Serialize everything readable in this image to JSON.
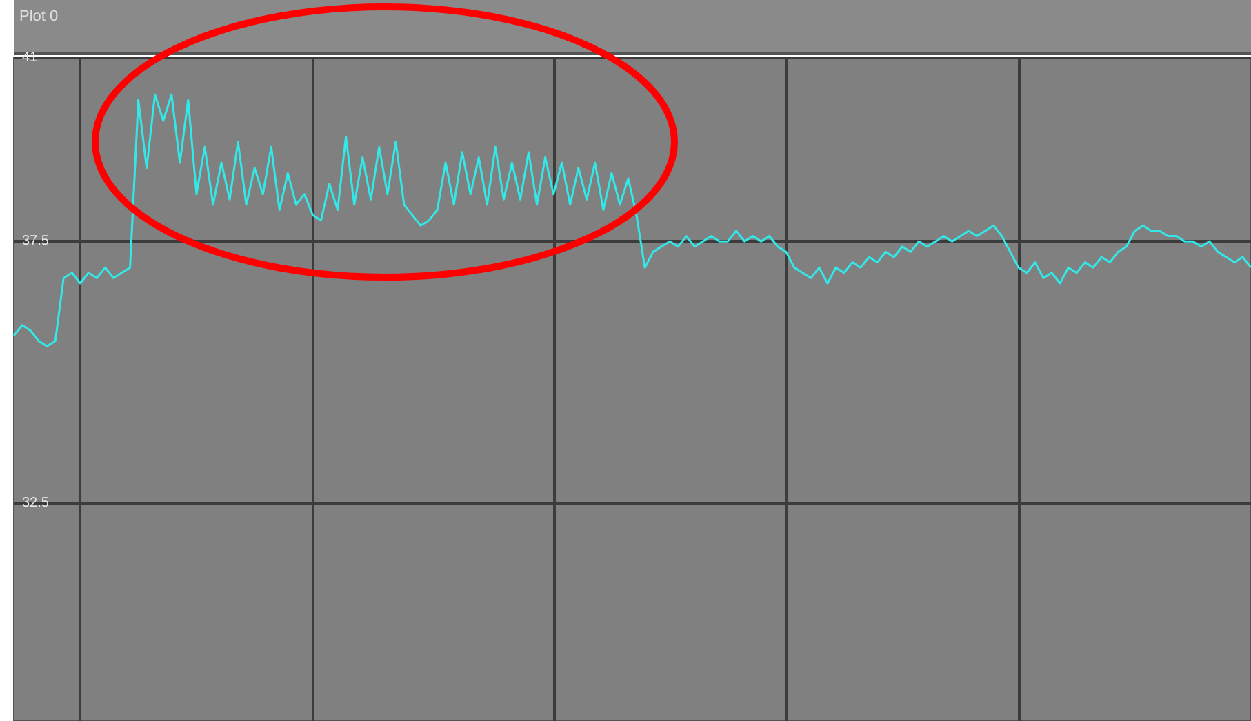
{
  "chart_data": {
    "type": "line",
    "title": "Plot 0",
    "categories": [
      null,
      null,
      null,
      null,
      null,
      null,
      null,
      null,
      null,
      null,
      null,
      null,
      null,
      null,
      null,
      null,
      null,
      null,
      null,
      null,
      null,
      null,
      null,
      null,
      null,
      null,
      null,
      null,
      null,
      null,
      null,
      null,
      null,
      null,
      null,
      null,
      null,
      null,
      null,
      null,
      null,
      null,
      null,
      null,
      null,
      null,
      null,
      null,
      null,
      null,
      null,
      null,
      null,
      null,
      null,
      null,
      null,
      null,
      null,
      null,
      null,
      null,
      null,
      null,
      null,
      null,
      null,
      null,
      null,
      null,
      null,
      null,
      null,
      null,
      null,
      null,
      null,
      null,
      null,
      null,
      null,
      null,
      null,
      null,
      null,
      null,
      null,
      null,
      null,
      null,
      null,
      null,
      null,
      null,
      null,
      null,
      null,
      null,
      null,
      null,
      null,
      null,
      null,
      null,
      null,
      null,
      null,
      null,
      null,
      null,
      null,
      null,
      null,
      null,
      null,
      null,
      null,
      null,
      null,
      null,
      null,
      null,
      null,
      null,
      null,
      null,
      null,
      null,
      null,
      null,
      null,
      null,
      null,
      null,
      null,
      null,
      null,
      null,
      null,
      null,
      null,
      null,
      null,
      null,
      null,
      null,
      null,
      null,
      null,
      null
    ],
    "series": [
      {
        "color": "#33e8e8",
        "values": [
          35.7,
          35.9,
          35.8,
          35.6,
          35.5,
          35.6,
          36.8,
          36.9,
          36.7,
          36.9,
          36.8,
          37.0,
          36.8,
          36.9,
          37.0,
          40.2,
          38.9,
          40.3,
          39.8,
          40.3,
          39.0,
          40.2,
          38.4,
          39.3,
          38.2,
          39.0,
          38.3,
          39.4,
          38.2,
          38.9,
          38.4,
          39.3,
          38.1,
          38.8,
          38.2,
          38.4,
          38.0,
          37.9,
          38.6,
          38.1,
          39.5,
          38.2,
          39.1,
          38.3,
          39.3,
          38.4,
          39.4,
          38.2,
          38.0,
          37.8,
          37.9,
          38.1,
          39.0,
          38.2,
          39.2,
          38.4,
          39.1,
          38.2,
          39.3,
          38.3,
          39.0,
          38.3,
          39.2,
          38.2,
          39.1,
          38.4,
          39.0,
          38.2,
          38.9,
          38.3,
          39.0,
          38.1,
          38.8,
          38.2,
          38.7,
          38.0,
          37.0,
          37.3,
          37.4,
          37.5,
          37.4,
          37.6,
          37.4,
          37.5,
          37.6,
          37.5,
          37.5,
          37.7,
          37.5,
          37.6,
          37.5,
          37.6,
          37.4,
          37.3,
          37.0,
          36.9,
          36.8,
          37.0,
          36.7,
          37.0,
          36.9,
          37.1,
          37.0,
          37.2,
          37.1,
          37.3,
          37.2,
          37.4,
          37.3,
          37.5,
          37.4,
          37.5,
          37.6,
          37.5,
          37.6,
          37.7,
          37.6,
          37.7,
          37.8,
          37.6,
          37.3,
          37.0,
          36.9,
          37.1,
          36.8,
          36.9,
          36.7,
          37.0,
          36.9,
          37.1,
          37.0,
          37.2,
          37.1,
          37.3,
          37.4,
          37.7,
          37.8,
          37.7,
          37.7,
          37.6,
          37.6,
          37.5,
          37.5,
          37.4,
          37.5,
          37.3,
          37.2,
          37.1,
          37.2,
          37.0
        ]
      }
    ],
    "ylim": [
      28.35,
      41
    ],
    "yticks": [
      32.5,
      37.5,
      41
    ],
    "grid": true,
    "tick_labels": "y",
    "line_style": "solid"
  }
}
